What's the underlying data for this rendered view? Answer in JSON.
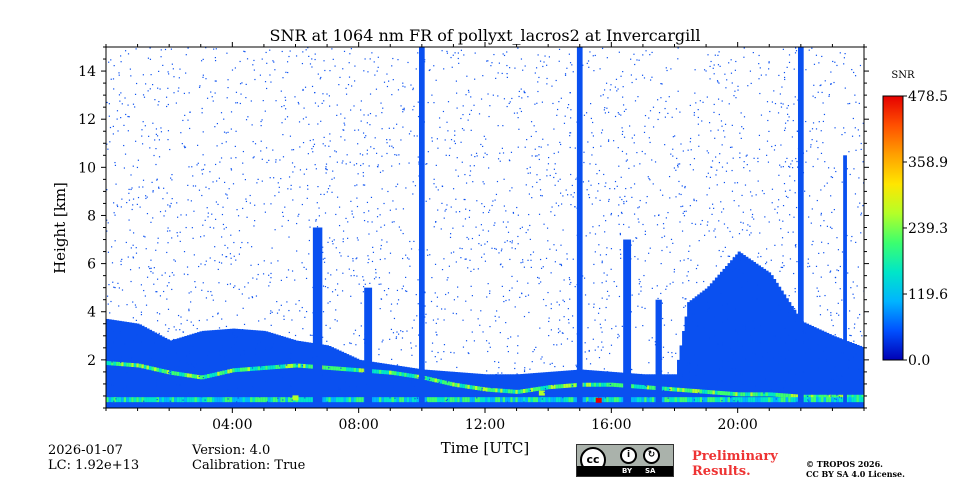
{
  "chart_data": {
    "type": "heatmap",
    "title": "SNR at 1064 nm FR of pollyxt_lacros2 at Invercargill",
    "xlabel": "Time [UTC]",
    "ylabel": "Height [km]",
    "xlim_hours": [
      0,
      24
    ],
    "ylim_km": [
      0,
      15
    ],
    "x_ticks": [
      {
        "hour": 4,
        "label": "04:00"
      },
      {
        "hour": 8,
        "label": "08:00"
      },
      {
        "hour": 12,
        "label": "12:00"
      },
      {
        "hour": 16,
        "label": "16:00"
      },
      {
        "hour": 20,
        "label": "20:00"
      }
    ],
    "y_ticks": [
      {
        "km": 2,
        "label": "2"
      },
      {
        "km": 4,
        "label": "4"
      },
      {
        "km": 6,
        "label": "6"
      },
      {
        "km": 8,
        "label": "8"
      },
      {
        "km": 10,
        "label": "10"
      },
      {
        "km": 12,
        "label": "12"
      },
      {
        "km": 14,
        "label": "14"
      }
    ],
    "colorbar": {
      "label": "SNR",
      "min": 0.0,
      "max": 478.5,
      "ticks": [
        {
          "value": 0.0,
          "label": "0.0"
        },
        {
          "value": 119.6,
          "label": "119.6"
        },
        {
          "value": 239.3,
          "label": "239.3"
        },
        {
          "value": 358.9,
          "label": "358.9"
        },
        {
          "value": 478.5,
          "label": "478.5"
        }
      ],
      "colormap": [
        "#0000b4",
        "#0050ff",
        "#00b4ff",
        "#00e6c8",
        "#3cff6e",
        "#b4ff28",
        "#ffe600",
        "#ffa000",
        "#ff5000",
        "#e60000"
      ]
    },
    "boundary_layer_top_km": [
      [
        0,
        1.8
      ],
      [
        1,
        1.7
      ],
      [
        2,
        1.4
      ],
      [
        3,
        1.2
      ],
      [
        4,
        1.5
      ],
      [
        5,
        1.6
      ],
      [
        6,
        1.7
      ],
      [
        7,
        1.6
      ],
      [
        8,
        1.5
      ],
      [
        9,
        1.4
      ],
      [
        10,
        1.2
      ],
      [
        11,
        0.9
      ],
      [
        12,
        0.7
      ],
      [
        13,
        0.6
      ],
      [
        14,
        0.8
      ],
      [
        15,
        0.9
      ],
      [
        16,
        0.9
      ],
      [
        17,
        0.8
      ],
      [
        18,
        0.7
      ],
      [
        19,
        0.6
      ],
      [
        20,
        0.5
      ],
      [
        21,
        0.5
      ],
      [
        22,
        0.4
      ],
      [
        23,
        0.4
      ],
      [
        24,
        0.4
      ]
    ],
    "aerosol_layer_top_km": [
      [
        0,
        3.7
      ],
      [
        1,
        3.5
      ],
      [
        2,
        2.8
      ],
      [
        3,
        3.2
      ],
      [
        4,
        3.3
      ],
      [
        5,
        3.2
      ],
      [
        6,
        2.8
      ],
      [
        7,
        2.6
      ],
      [
        8,
        2.0
      ],
      [
        9,
        1.8
      ],
      [
        10,
        1.6
      ],
      [
        11,
        1.5
      ],
      [
        12,
        1.4
      ],
      [
        13,
        1.4
      ],
      [
        14,
        1.5
      ],
      [
        15,
        1.6
      ],
      [
        16,
        1.5
      ],
      [
        17,
        1.4
      ],
      [
        18,
        1.4
      ],
      [
        18.4,
        4.4
      ],
      [
        19,
        5.0
      ],
      [
        20,
        6.5
      ],
      [
        21,
        5.6
      ],
      [
        22,
        3.6
      ],
      [
        23,
        3.0
      ],
      [
        24,
        2.5
      ]
    ],
    "vertical_features": [
      {
        "hour": 10.0,
        "top_km": 15,
        "width_h": 0.18
      },
      {
        "hour": 15.0,
        "top_km": 15,
        "width_h": 0.18
      },
      {
        "hour": 22.0,
        "top_km": 15,
        "width_h": 0.18
      },
      {
        "hour": 6.7,
        "top_km": 7.5,
        "width_h": 0.3
      },
      {
        "hour": 8.3,
        "top_km": 5.0,
        "width_h": 0.25
      },
      {
        "hour": 16.5,
        "top_km": 7.0,
        "width_h": 0.25
      },
      {
        "hour": 17.5,
        "top_km": 4.5,
        "width_h": 0.2
      },
      {
        "hour": 23.4,
        "top_km": 10.5,
        "width_h": 0.12
      }
    ],
    "snr_hotspots": [
      {
        "hour": 15.6,
        "km": 0.3,
        "snr": 470
      },
      {
        "hour": 13.8,
        "km": 0.6,
        "snr": 250
      },
      {
        "hour": 6.0,
        "km": 0.4,
        "snr": 260
      }
    ]
  },
  "footer": {
    "date": "2026-01-07",
    "lc": "LC: 1.92e+13",
    "version": "Version: 4.0",
    "calibration": "Calibration: True",
    "preliminary_line1": "Preliminary",
    "preliminary_line2": "Results.",
    "copyright_line1": "© TROPOS 2026.",
    "copyright_line2": "CC BY SA 4.0 License.",
    "license_badge": {
      "main": "cc",
      "by": "BY",
      "sa": "SA"
    }
  }
}
